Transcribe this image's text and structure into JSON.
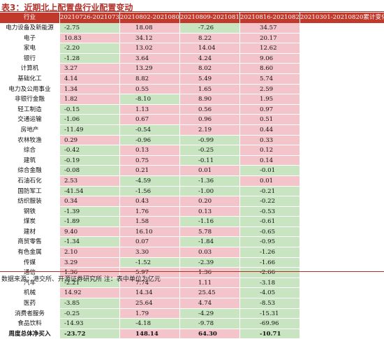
{
  "title": "表3：近期北上配置盘行业配置变动",
  "header": [
    "行业",
    "20210726-20210730",
    "20210802-20210806",
    "20210809-20210813",
    "20210816-20210820",
    "20210301-20210820累计变化"
  ],
  "rows": [
    {
      "name": "电力设备及新能源",
      "v": [
        "-2.75",
        "18.08",
        "-7.26",
        "34.57"
      ]
    },
    {
      "name": "电子",
      "v": [
        "10.83",
        "34.12",
        "8.22",
        "20.17"
      ]
    },
    {
      "name": "家电",
      "v": [
        "-2.20",
        "13.02",
        "14.04",
        "12.62"
      ]
    },
    {
      "name": "银行",
      "v": [
        "-1.28",
        "3.64",
        "4.24",
        "9.06"
      ]
    },
    {
      "name": "计算机",
      "v": [
        "3.27",
        "13.29",
        "8.02",
        "8.60"
      ]
    },
    {
      "name": "基础化工",
      "v": [
        "4.14",
        "8.82",
        "5.49",
        "5.74"
      ]
    },
    {
      "name": "电力及公用事业",
      "v": [
        "1.34",
        "0.55",
        "1.65",
        "2.59"
      ]
    },
    {
      "name": "非银行金融",
      "v": [
        "1.82",
        "-8.10",
        "8.90",
        "1.95"
      ]
    },
    {
      "name": "轻工制造",
      "v": [
        "-0.15",
        "1.13",
        "0.56",
        "0.97"
      ]
    },
    {
      "name": "交通运输",
      "v": [
        "-1.06",
        "0.67",
        "0.96",
        "0.51"
      ]
    },
    {
      "name": "房地产",
      "v": [
        "-11.49",
        "-0.54",
        "2.19",
        "0.44"
      ]
    },
    {
      "name": "农林牧渔",
      "v": [
        "0.29",
        "-0.96",
        "-0.99",
        "0.33"
      ]
    },
    {
      "name": "综合",
      "v": [
        "-0.42",
        "0.13",
        "-0.25",
        "0.12"
      ]
    },
    {
      "name": "建筑",
      "v": [
        "-0.19",
        "0.75",
        "-0.11",
        "0.14"
      ]
    },
    {
      "name": "综合金融",
      "v": [
        "-0.08",
        "0.21",
        "0.01",
        "-0.01"
      ]
    },
    {
      "name": "石油石化",
      "v": [
        "2.53",
        "-4.59",
        "-1.36",
        "0.01"
      ]
    },
    {
      "name": "国防军工",
      "v": [
        "-41.54",
        "-1.56",
        "-1.00",
        "-0.21"
      ]
    },
    {
      "name": "纺织服装",
      "v": [
        "0.34",
        "0.43",
        "0.20",
        "-0.22"
      ]
    },
    {
      "name": "钢铁",
      "v": [
        "-1.39",
        "1.76",
        "0.13",
        "-0.53"
      ]
    },
    {
      "name": "煤炭",
      "v": [
        "-1.89",
        "1.58",
        "-1.16",
        "-0.61"
      ]
    },
    {
      "name": "建材",
      "v": [
        "9.40",
        "16.10",
        "5.78",
        "-0.65"
      ]
    },
    {
      "name": "商贸零售",
      "v": [
        "-1.34",
        "0.07",
        "-1.84",
        "-0.95"
      ]
    },
    {
      "name": "有色金属",
      "v": [
        "2.10",
        "3.30",
        "0.03",
        "-1.26"
      ]
    },
    {
      "name": "传媒",
      "v": [
        "3.29",
        "-1.52",
        "-2.39",
        "-1.66"
      ]
    },
    {
      "name": "通信",
      "v": [
        "1.36",
        "5.97",
        "1.36",
        "-2.66"
      ]
    },
    {
      "name": "汽车",
      "v": [
        "-2.21",
        "7.74",
        "1.11",
        "-3.18"
      ]
    },
    {
      "name": "机械",
      "v": [
        "14.92",
        "14.34",
        "25.45",
        "-4.05"
      ]
    },
    {
      "name": "医药",
      "v": [
        "-3.85",
        "25.64",
        "4.74",
        "-8.53"
      ]
    },
    {
      "name": "消费者服务",
      "v": [
        "-0.25",
        "1.79",
        "-4.29",
        "-15.31"
      ]
    },
    {
      "name": "食品饮料",
      "v": [
        "-14.93",
        "-4.18",
        "-9.78",
        "-69.96"
      ]
    }
  ],
  "total": {
    "name": "周度总体净买入",
    "v": [
      "-23.72",
      "148.14",
      "64.30",
      "-10.71"
    ]
  },
  "footer": "数据来源：港交所、开源证券研究所   注：表中单位为亿元",
  "colors": {
    "title": "#b3312b",
    "header_bg": "#c0392b",
    "pos_bg": "#f3c4c9",
    "neg_bg": "#c9e4c0",
    "spark": "#2f6fb3",
    "spark_dot": "#d62728"
  }
}
